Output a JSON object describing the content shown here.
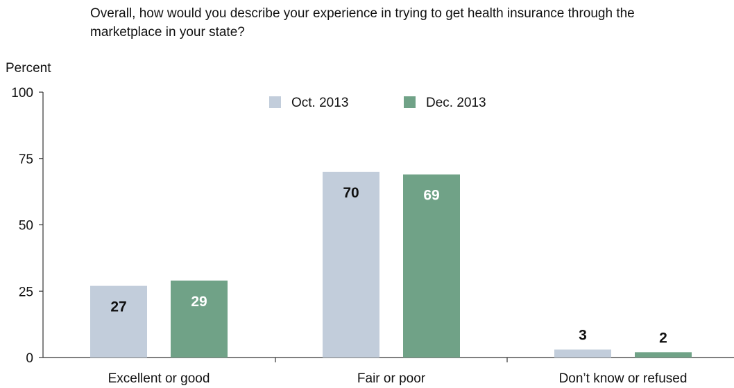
{
  "chart_data": {
    "type": "bar",
    "title": "Overall, how would you describe your experience in trying to get health insurance through the marketplace in your state?",
    "ylabel": "Percent",
    "xlabel": "",
    "ylim": [
      0,
      100
    ],
    "yticks": [
      0,
      25,
      50,
      75,
      100
    ],
    "categories": [
      "Excellent or good",
      "Fair or poor",
      "Don’t know or refused"
    ],
    "series": [
      {
        "name": "Oct. 2013",
        "values": [
          27,
          70,
          3
        ],
        "color": "#c2cddb",
        "label_color": "#111111"
      },
      {
        "name": "Dec. 2013",
        "values": [
          29,
          69,
          2
        ],
        "color": "#70a287",
        "label_color": "#ffffff"
      }
    ],
    "legend_position": "top-center",
    "grid": false
  }
}
